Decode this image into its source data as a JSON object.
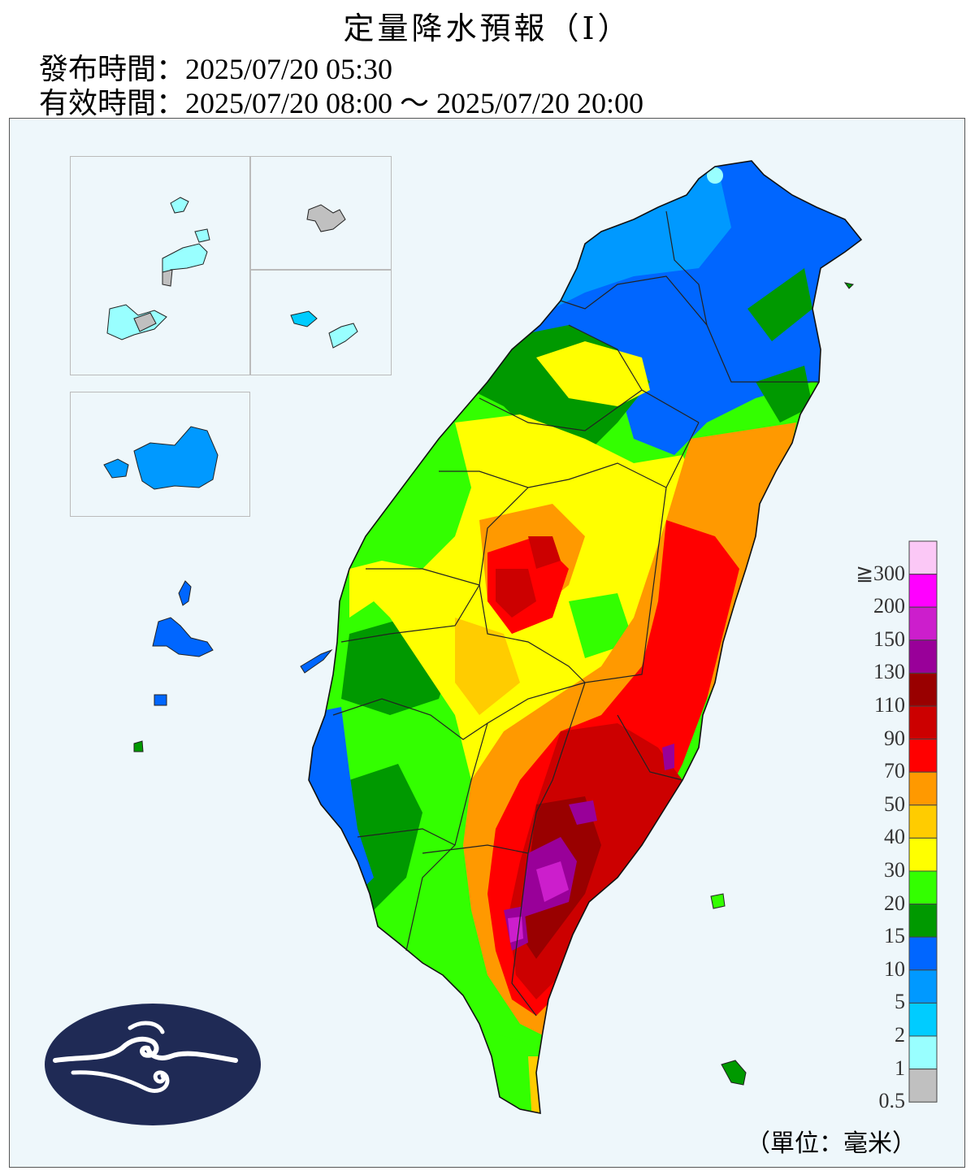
{
  "header": {
    "title": "定量降水預報（Ⅰ）",
    "issue_label": "發布時間：",
    "issue_time": "2025/07/20 05:30",
    "valid_label": "有效時間：",
    "valid_time": "2025/07/20 08:00 ～ 2025/07/20 20:00"
  },
  "legend": {
    "unit": "（單位：毫米）",
    "bins": [
      {
        "label": "≧300",
        "color": "#fbc8f6"
      },
      {
        "label": "200",
        "color": "#ff00ff"
      },
      {
        "label": "150",
        "color": "#cc1ecc"
      },
      {
        "label": "130",
        "color": "#990099"
      },
      {
        "label": "110",
        "color": "#990000"
      },
      {
        "label": "90",
        "color": "#cc0000"
      },
      {
        "label": "70",
        "color": "#ff0000"
      },
      {
        "label": "50",
        "color": "#ff9900"
      },
      {
        "label": "40",
        "color": "#ffcc00"
      },
      {
        "label": "30",
        "color": "#ffff00"
      },
      {
        "label": "20",
        "color": "#33ff00"
      },
      {
        "label": "15",
        "color": "#009900"
      },
      {
        "label": "10",
        "color": "#0066ff"
      },
      {
        "label": "5",
        "color": "#0099ff"
      },
      {
        "label": "2",
        "color": "#00ccff"
      },
      {
        "label": "1",
        "color": "#99ffff"
      },
      {
        "label": "0.5",
        "color": "#c0c0c0"
      }
    ]
  },
  "logo": {
    "name": "cwa-logo",
    "color": "#1f2a55"
  }
}
